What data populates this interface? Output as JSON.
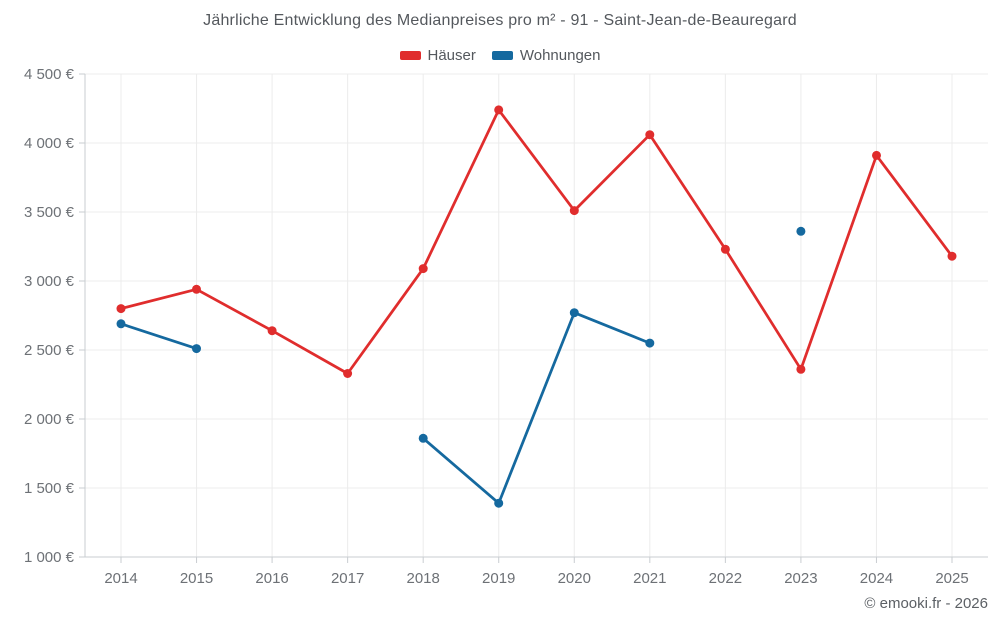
{
  "page": {
    "footer": "© emooki.fr - 2026"
  },
  "colors": {
    "background": "#ffffff",
    "grid": "#ececec",
    "axis": "#c9cdd1",
    "title_text": "#54585d",
    "tick_text": "#6d7176",
    "footer_text": "#5c6065",
    "hauser_red": "#e02d2d",
    "wohnungen_blue": "#15699f"
  },
  "chart_data": {
    "type": "line",
    "title": "Jährliche Entwicklung des Medianpreises pro m² - 91 - Saint-Jean-de-Beauregard",
    "xlabel": "",
    "ylabel": "",
    "categories": [
      "2014",
      "2015",
      "2016",
      "2017",
      "2018",
      "2019",
      "2020",
      "2021",
      "2022",
      "2023",
      "2024",
      "2025"
    ],
    "series": [
      {
        "name": "Häuser",
        "color": "#e02d2d",
        "values": [
          2800,
          2940,
          2640,
          2330,
          3090,
          4240,
          3510,
          4060,
          3230,
          2360,
          3910,
          3180
        ]
      },
      {
        "name": "Wohnungen",
        "color": "#15699f",
        "values": [
          2690,
          2510,
          null,
          null,
          1860,
          1390,
          2770,
          2550,
          null,
          3360,
          null,
          null
        ]
      }
    ],
    "ylim": [
      1000,
      4500
    ],
    "y_ticks": [
      {
        "value": 4500,
        "label": "4 500 €"
      },
      {
        "value": 4000,
        "label": "4 000 €"
      },
      {
        "value": 3500,
        "label": "3 500 €"
      },
      {
        "value": 3000,
        "label": "3 000 €"
      },
      {
        "value": 2500,
        "label": "2 500 €"
      },
      {
        "value": 2000,
        "label": "2 000 €"
      },
      {
        "value": 1500,
        "label": "1 500 €"
      },
      {
        "value": 1000,
        "label": "1 000 €"
      }
    ],
    "grid": true,
    "legend_position": "top",
    "unit": "€"
  }
}
